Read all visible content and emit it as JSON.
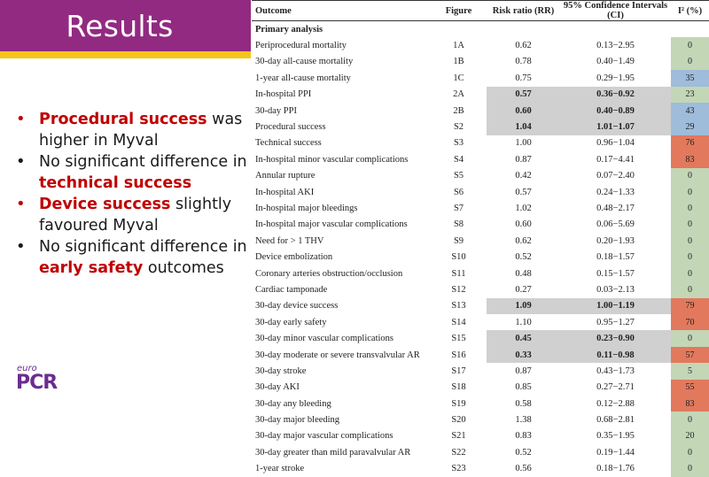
{
  "slide": {
    "title": "Results",
    "colors": {
      "header": "#922a81",
      "accent": "#f5c518",
      "highlight": "#c00000",
      "logo": "#6b2c8f"
    },
    "bullets": [
      {
        "highlight": "Procedural success",
        "text_after": " was higher in Myval",
        "text_before": "",
        "bullet_color": "red"
      },
      {
        "text_before": "No significant difference in ",
        "highlight": "technical success",
        "text_after": "",
        "bullet_color": "black"
      },
      {
        "highlight": "Device success",
        "text_after": " slightly favoured Myval",
        "text_before": "",
        "bullet_color": "red"
      },
      {
        "text_before": "No significant difference in ",
        "highlight": "early safety",
        "text_after": " outcomes",
        "bullet_color": "black"
      }
    ],
    "logo": {
      "small": "euro",
      "large": "PCR"
    }
  },
  "table": {
    "headers": [
      "Outcome",
      "Figure",
      "Risk ratio (RR)",
      "95% Confidence Intervals (CI)",
      "I² (%)"
    ],
    "section_label": "Primary analysis",
    "i2_colors": {
      "low": "#c3d6b6",
      "moderate": "#9fbcdb",
      "high": "#e2795d"
    },
    "rows": [
      {
        "outcome": "Periprocedural mortality",
        "figure": "1A",
        "rr": "0.62",
        "ci": "0.13−2.95",
        "i2": "0",
        "level": "low",
        "sig": false
      },
      {
        "outcome": "30-day all-cause mortality",
        "figure": "1B",
        "rr": "0.78",
        "ci": "0.40−1.49",
        "i2": "0",
        "level": "low",
        "sig": false
      },
      {
        "outcome": "1-year all-cause mortality",
        "figure": "1C",
        "rr": "0.75",
        "ci": "0.29−1.95",
        "i2": "35",
        "level": "mod",
        "sig": false
      },
      {
        "outcome": "In-hospital PPI",
        "figure": "2A",
        "rr": "0.57",
        "ci": "0.36−0.92",
        "i2": "23",
        "level": "low",
        "sig": true
      },
      {
        "outcome": "30-day PPI",
        "figure": "2B",
        "rr": "0.60",
        "ci": "0.40−0.89",
        "i2": "43",
        "level": "mod",
        "sig": true
      },
      {
        "outcome": "Procedural success",
        "figure": "S2",
        "rr": "1.04",
        "ci": "1.01−1.07",
        "i2": "29",
        "level": "mod",
        "sig": true
      },
      {
        "outcome": "Technical success",
        "figure": "S3",
        "rr": "1.00",
        "ci": "0.96−1.04",
        "i2": "76",
        "level": "high",
        "sig": false
      },
      {
        "outcome": "In-hospital minor vascular complications",
        "figure": "S4",
        "rr": "0.87",
        "ci": "0.17−4.41",
        "i2": "83",
        "level": "high",
        "sig": false
      },
      {
        "outcome": "Annular rupture",
        "figure": "S5",
        "rr": "0.42",
        "ci": "0.07−2.40",
        "i2": "0",
        "level": "low",
        "sig": false
      },
      {
        "outcome": "In-hospital AKI",
        "figure": "S6",
        "rr": "0.57",
        "ci": "0.24−1.33",
        "i2": "0",
        "level": "low",
        "sig": false
      },
      {
        "outcome": "In-hospital major bleedings",
        "figure": "S7",
        "rr": "1.02",
        "ci": "0.48−2.17",
        "i2": "0",
        "level": "low",
        "sig": false
      },
      {
        "outcome": "In-hospital major vascular complications",
        "figure": "S8",
        "rr": "0.60",
        "ci": "0.06−5.69",
        "i2": "0",
        "level": "low",
        "sig": false
      },
      {
        "outcome": "Need for > 1 THV",
        "figure": "S9",
        "rr": "0.62",
        "ci": "0.20−1.93",
        "i2": "0",
        "level": "low",
        "sig": false
      },
      {
        "outcome": "Device embolization",
        "figure": "S10",
        "rr": "0.52",
        "ci": "0.18−1.57",
        "i2": "0",
        "level": "low",
        "sig": false
      },
      {
        "outcome": "Coronary arteries obstruction/occlusion",
        "figure": "S11",
        "rr": "0.48",
        "ci": "0.15−1.57",
        "i2": "0",
        "level": "low",
        "sig": false
      },
      {
        "outcome": "Cardiac tamponade",
        "figure": "S12",
        "rr": "0.27",
        "ci": "0.03−2.13",
        "i2": "0",
        "level": "low",
        "sig": false
      },
      {
        "outcome": "30-day device success",
        "figure": "S13",
        "rr": "1.09",
        "ci": "1.00−1.19",
        "i2": "79",
        "level": "high",
        "sig": true
      },
      {
        "outcome": "30-day early safety",
        "figure": "S14",
        "rr": "1.10",
        "ci": "0.95−1.27",
        "i2": "70",
        "level": "high",
        "sig": false
      },
      {
        "outcome": "30-day minor vascular complications",
        "figure": "S15",
        "rr": "0.45",
        "ci": "0.23−0.90",
        "i2": "0",
        "level": "low",
        "sig": true
      },
      {
        "outcome": "30-day moderate or severe transvalvular AR",
        "figure": "S16",
        "rr": "0.33",
        "ci": "0.11−0.98",
        "i2": "57",
        "level": "high",
        "sig": true
      },
      {
        "outcome": "30-day stroke",
        "figure": "S17",
        "rr": "0.87",
        "ci": "0.43−1.73",
        "i2": "5",
        "level": "low",
        "sig": false
      },
      {
        "outcome": "30-day AKI",
        "figure": "S18",
        "rr": "0.85",
        "ci": "0.27−2.71",
        "i2": "55",
        "level": "high",
        "sig": false
      },
      {
        "outcome": "30-day any bleeding",
        "figure": "S19",
        "rr": "0.58",
        "ci": "0.12−2.88",
        "i2": "83",
        "level": "high",
        "sig": false
      },
      {
        "outcome": "30-day major bleeding",
        "figure": "S20",
        "rr": "1.38",
        "ci": "0.68−2.81",
        "i2": "0",
        "level": "low",
        "sig": false
      },
      {
        "outcome": "30-day major vascular complications",
        "figure": "S21",
        "rr": "0.83",
        "ci": "0.35−1.95",
        "i2": "20",
        "level": "low",
        "sig": false
      },
      {
        "outcome": "30-day greater than mild paravalvular AR",
        "figure": "S22",
        "rr": "0.52",
        "ci": "0.19−1.44",
        "i2": "0",
        "level": "low",
        "sig": false
      },
      {
        "outcome": "1-year stroke",
        "figure": "S23",
        "rr": "0.56",
        "ci": "0.18−1.76",
        "i2": "0",
        "level": "low",
        "sig": false
      }
    ]
  }
}
